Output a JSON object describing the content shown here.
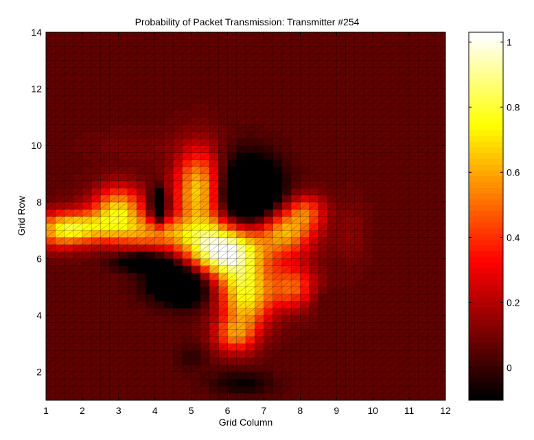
{
  "chart_data": {
    "type": "heatmap",
    "title": "Probability of Packet Transmission: Transmitter #254",
    "xlabel": "Grid Column",
    "ylabel": "Grid Row",
    "xlim": [
      1,
      12
    ],
    "ylim": [
      1,
      14
    ],
    "x_ticks": [
      1,
      2,
      3,
      4,
      5,
      6,
      7,
      8,
      9,
      10,
      11,
      12
    ],
    "y_ticks": [
      2,
      4,
      6,
      8,
      10,
      12,
      14
    ],
    "colorbar": {
      "colormap": "hot",
      "range": [
        -0.1,
        1.03
      ],
      "ticks": [
        0,
        0.2,
        0.4,
        0.6,
        0.8,
        1
      ],
      "tick_labels": [
        "0",
        "0.2",
        "0.4",
        "0.6",
        "0.8",
        "1"
      ]
    },
    "grid_resolution": 0.25,
    "background_value": 0.07,
    "features": [
      {
        "x": 5.9,
        "y": 6.3,
        "sx": 0.75,
        "sy": 0.7,
        "amp": 0.98
      },
      {
        "x": 5.2,
        "y": 8.4,
        "sx": 0.45,
        "sy": 1.0,
        "amp": 0.62
      },
      {
        "x": 3.0,
        "y": 7.7,
        "sx": 0.5,
        "sy": 0.6,
        "amp": 0.6
      },
      {
        "x": 2.0,
        "y": 7.1,
        "sx": 0.6,
        "sy": 0.4,
        "amp": 0.5
      },
      {
        "x": 1.3,
        "y": 7.0,
        "sx": 0.5,
        "sy": 0.45,
        "amp": 0.4
      },
      {
        "x": 4.0,
        "y": 6.9,
        "sx": 0.8,
        "sy": 0.4,
        "amp": 0.45
      },
      {
        "x": 6.5,
        "y": 4.7,
        "sx": 0.5,
        "sy": 0.8,
        "amp": 0.65
      },
      {
        "x": 6.2,
        "y": 3.3,
        "sx": 0.4,
        "sy": 0.45,
        "amp": 0.4
      },
      {
        "x": 7.8,
        "y": 5.0,
        "sx": 0.45,
        "sy": 0.55,
        "amp": 0.4
      },
      {
        "x": 7.6,
        "y": 7.0,
        "sx": 0.55,
        "sy": 0.6,
        "amp": 0.55
      },
      {
        "x": 8.2,
        "y": 7.7,
        "sx": 0.35,
        "sy": 0.4,
        "amp": 0.3
      },
      {
        "x": 4.1,
        "y": 7.8,
        "sx": 0.15,
        "sy": 0.45,
        "amp": -0.5
      },
      {
        "x": 6.6,
        "y": 8.2,
        "sx": 0.6,
        "sy": 0.9,
        "amp": -0.55
      },
      {
        "x": 4.7,
        "y": 5.2,
        "sx": 0.6,
        "sy": 0.5,
        "amp": -0.5
      },
      {
        "x": 3.8,
        "y": 5.9,
        "sx": 0.5,
        "sy": 0.25,
        "amp": -0.2
      },
      {
        "x": 3.4,
        "y": 5.9,
        "sx": 0.5,
        "sy": 0.2,
        "amp": -0.12
      },
      {
        "x": 6.4,
        "y": 1.6,
        "sx": 0.6,
        "sy": 0.3,
        "amp": -0.15
      },
      {
        "x": 4.9,
        "y": 4.7,
        "sx": 0.3,
        "sy": 0.3,
        "amp": -0.1
      },
      {
        "x": 5.0,
        "y": 2.5,
        "sx": 0.3,
        "sy": 0.35,
        "amp": -0.08
      },
      {
        "x": 8.5,
        "y": 4.6,
        "sx": 0.3,
        "sy": 0.3,
        "amp": -0.06
      },
      {
        "x": 9.4,
        "y": 6.9,
        "sx": 0.3,
        "sy": 0.8,
        "amp": 0.07
      },
      {
        "x": 3.5,
        "y": 10.0,
        "sx": 1.0,
        "sy": 0.35,
        "amp": 0.04
      }
    ]
  }
}
